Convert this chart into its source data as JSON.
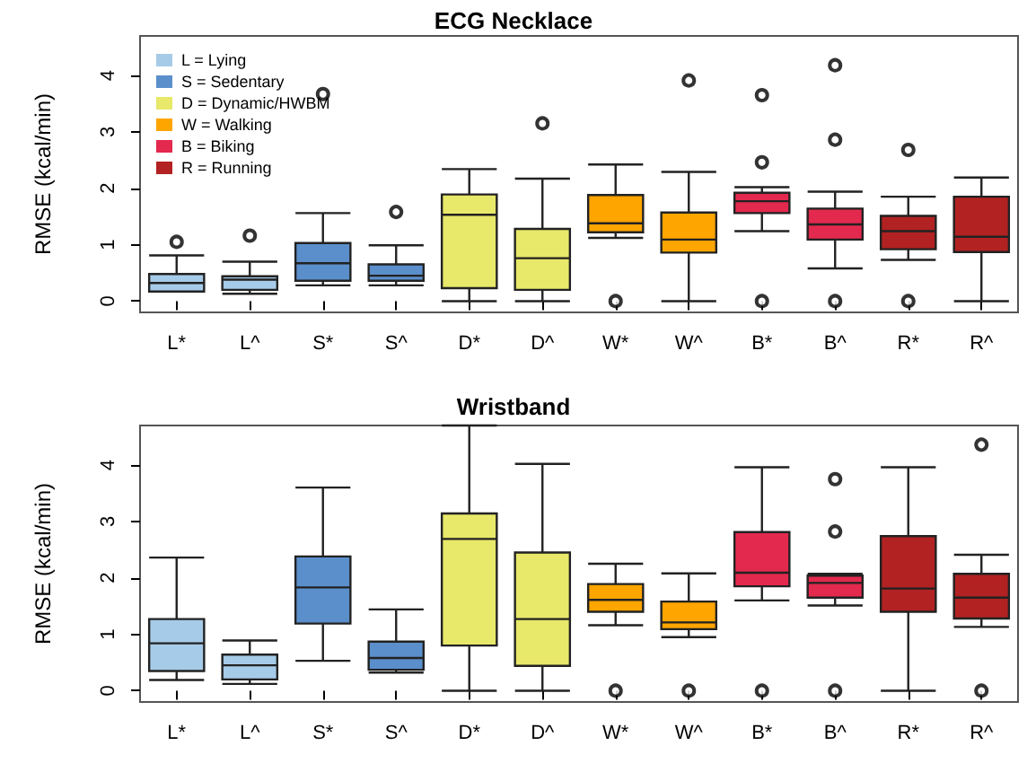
{
  "chart_data": [
    {
      "type": "box",
      "title": "ECG Necklace",
      "ylabel": "RMSE (kcal/min)",
      "categories": [
        "L*",
        "L^",
        "S*",
        "S^",
        "D*",
        "D^",
        "W*",
        "W^",
        "B*",
        "B^",
        "R*",
        "R^"
      ],
      "ylim": [
        -0.2,
        4.7
      ],
      "yticks": [
        0,
        1,
        2,
        3,
        4
      ],
      "legend": "top left",
      "grid": false,
      "series": [
        {
          "name": "L = Lying",
          "color": "#a6cbe8",
          "boxes": [
            {
              "low": 0.17,
              "q1": 0.17,
              "median": 0.32,
              "q3": 0.48,
              "high": 0.81,
              "outliers": [
                1.05
              ]
            },
            {
              "low": 0.13,
              "q1": 0.2,
              "median": 0.38,
              "q3": 0.44,
              "high": 0.7,
              "outliers": [
                1.16
              ]
            },
            null,
            null,
            null,
            null,
            null,
            null,
            null,
            null,
            null,
            null
          ]
        },
        {
          "name": "S = Sedentary",
          "color": "#5b8fcb",
          "boxes": [
            null,
            null,
            {
              "low": 0.28,
              "q1": 0.36,
              "median": 0.67,
              "q3": 1.03,
              "high": 1.56,
              "outliers": [
                3.67
              ]
            },
            {
              "low": 0.28,
              "q1": 0.36,
              "median": 0.45,
              "q3": 0.65,
              "high": 0.99,
              "outliers": [
                1.58
              ]
            },
            null,
            null,
            null,
            null,
            null,
            null,
            null,
            null
          ]
        },
        {
          "name": "D = Dynamic/HWBM",
          "color": "#e8e86a",
          "boxes": [
            null,
            null,
            null,
            null,
            {
              "low": 0,
              "q1": 0.23,
              "median": 1.53,
              "q3": 1.89,
              "high": 2.34
            },
            {
              "low": 0,
              "q1": 0.2,
              "median": 0.76,
              "q3": 1.28,
              "high": 2.17,
              "outliers": [
                3.15
              ]
            },
            null,
            null,
            null,
            null,
            null,
            null
          ]
        },
        {
          "name": "W = Walking",
          "color": "#ffa500",
          "boxes": [
            null,
            null,
            null,
            null,
            null,
            null,
            {
              "low": 1.12,
              "q1": 1.22,
              "median": 1.38,
              "q3": 1.88,
              "high": 2.42,
              "outliers": [
                0
              ]
            },
            {
              "low": 0,
              "q1": 0.86,
              "median": 1.09,
              "q3": 1.57,
              "high": 2.29,
              "outliers": [
                3.91
              ]
            },
            null,
            null,
            null,
            null
          ]
        },
        {
          "name": "B = Biking",
          "color": "#e3294e",
          "boxes": [
            null,
            null,
            null,
            null,
            null,
            null,
            null,
            null,
            {
              "low": 1.24,
              "q1": 1.56,
              "median": 1.77,
              "q3": 1.92,
              "high": 2.02,
              "outliers": [
                0,
                2.46,
                3.65
              ]
            },
            {
              "low": 0.58,
              "q1": 1.09,
              "median": 1.36,
              "q3": 1.64,
              "high": 1.94,
              "outliers": [
                0,
                2.86,
                4.18
              ]
            },
            null,
            null
          ]
        },
        {
          "name": "R = Running",
          "color": "#b22222",
          "boxes": [
            null,
            null,
            null,
            null,
            null,
            null,
            null,
            null,
            null,
            null,
            {
              "low": 0.73,
              "q1": 0.92,
              "median": 1.24,
              "q3": 1.51,
              "high": 1.85,
              "outliers": [
                0,
                2.68
              ]
            },
            {
              "low": 0,
              "q1": 0.87,
              "median": 1.14,
              "q3": 1.85,
              "high": 2.19
            }
          ]
        }
      ]
    },
    {
      "type": "box",
      "title": "Wristband",
      "ylabel": "RMSE (kcal/min)",
      "categories": [
        "L*",
        "L^",
        "S*",
        "S^",
        "D*",
        "D^",
        "W*",
        "W^",
        "B*",
        "B^",
        "R*",
        "R^"
      ],
      "ylim": [
        -0.2,
        4.7
      ],
      "yticks": [
        0,
        1,
        2,
        3,
        4
      ],
      "grid": false,
      "series": [
        {
          "color": "#a6cbe8",
          "boxes": [
            {
              "low": 0.19,
              "q1": 0.35,
              "median": 0.84,
              "q3": 1.27,
              "high": 2.36
            },
            {
              "low": 0.12,
              "q1": 0.2,
              "median": 0.45,
              "q3": 0.64,
              "high": 0.89
            },
            null,
            null,
            null,
            null,
            null,
            null,
            null,
            null,
            null,
            null
          ]
        },
        {
          "color": "#5b8fcb",
          "boxes": [
            null,
            null,
            {
              "low": 0.53,
              "q1": 1.19,
              "median": 1.83,
              "q3": 2.38,
              "high": 3.6
            },
            {
              "low": 0.32,
              "q1": 0.37,
              "median": 0.58,
              "q3": 0.87,
              "high": 1.44
            },
            null,
            null,
            null,
            null,
            null,
            null,
            null,
            null
          ]
        },
        {
          "color": "#e8e86a",
          "boxes": [
            null,
            null,
            null,
            null,
            {
              "low": 0,
              "q1": 0.8,
              "median": 2.69,
              "q3": 3.14,
              "high": 4.7
            },
            {
              "low": 0,
              "q1": 0.44,
              "median": 1.27,
              "q3": 2.45,
              "high": 4.02
            },
            null,
            null,
            null,
            null,
            null,
            null
          ]
        },
        {
          "color": "#ffa500",
          "boxes": [
            null,
            null,
            null,
            null,
            null,
            null,
            {
              "low": 1.16,
              "q1": 1.4,
              "median": 1.61,
              "q3": 1.89,
              "high": 2.25,
              "outliers": [
                0
              ]
            },
            {
              "low": 0.95,
              "q1": 1.09,
              "median": 1.21,
              "q3": 1.58,
              "high": 2.08,
              "outliers": [
                0
              ]
            },
            null,
            null,
            null,
            null
          ]
        },
        {
          "color": "#e3294e",
          "boxes": [
            null,
            null,
            null,
            null,
            null,
            null,
            null,
            null,
            {
              "low": 1.6,
              "q1": 1.85,
              "median": 2.09,
              "q3": 2.81,
              "high": 3.96,
              "outliers": [
                0
              ]
            },
            {
              "low": 1.51,
              "q1": 1.65,
              "median": 1.91,
              "q3": 2.04,
              "high": 2.07,
              "outliers": [
                0,
                2.82,
                3.75
              ]
            },
            null,
            null
          ]
        },
        {
          "color": "#b22222",
          "boxes": [
            null,
            null,
            null,
            null,
            null,
            null,
            null,
            null,
            null,
            null,
            {
              "low": 0,
              "q1": 1.4,
              "median": 1.81,
              "q3": 2.74,
              "high": 3.96
            },
            {
              "low": 1.13,
              "q1": 1.28,
              "median": 1.65,
              "q3": 2.07,
              "high": 2.41,
              "outliers": [
                0,
                4.36
              ]
            }
          ]
        }
      ]
    }
  ]
}
